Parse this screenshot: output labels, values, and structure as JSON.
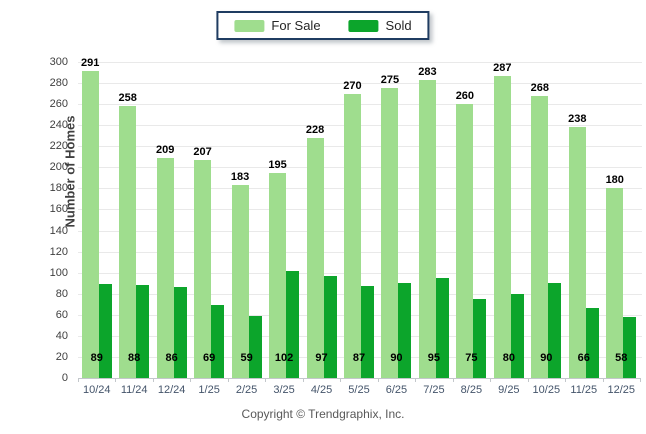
{
  "legend": {
    "items": [
      {
        "label": "For Sale",
        "color": "#9fdd8e"
      },
      {
        "label": "Sold",
        "color": "#0ca52b"
      }
    ]
  },
  "chart_data": {
    "type": "bar",
    "title": "",
    "categories": [
      "10/24",
      "11/24",
      "12/24",
      "1/25",
      "2/25",
      "3/25",
      "4/25",
      "5/25",
      "6/25",
      "7/25",
      "8/25",
      "9/25",
      "10/25",
      "11/25",
      "12/25"
    ],
    "series": [
      {
        "name": "For Sale",
        "color": "#9fdd8e",
        "values": [
          291,
          258,
          209,
          207,
          183,
          195,
          228,
          270,
          275,
          283,
          260,
          287,
          268,
          238,
          180
        ]
      },
      {
        "name": "Sold",
        "color": "#0ca52b",
        "values": [
          89,
          88,
          86,
          69,
          59,
          102,
          97,
          87,
          90,
          95,
          75,
          80,
          90,
          66,
          58
        ]
      }
    ],
    "xlabel": "",
    "ylabel": "Number of Homes",
    "ylim": [
      0,
      300
    ],
    "ytick_step": 20,
    "grid": true,
    "legend_position": "top"
  },
  "footer": {
    "copyright": "Copyright © Trendgraphix, Inc."
  }
}
